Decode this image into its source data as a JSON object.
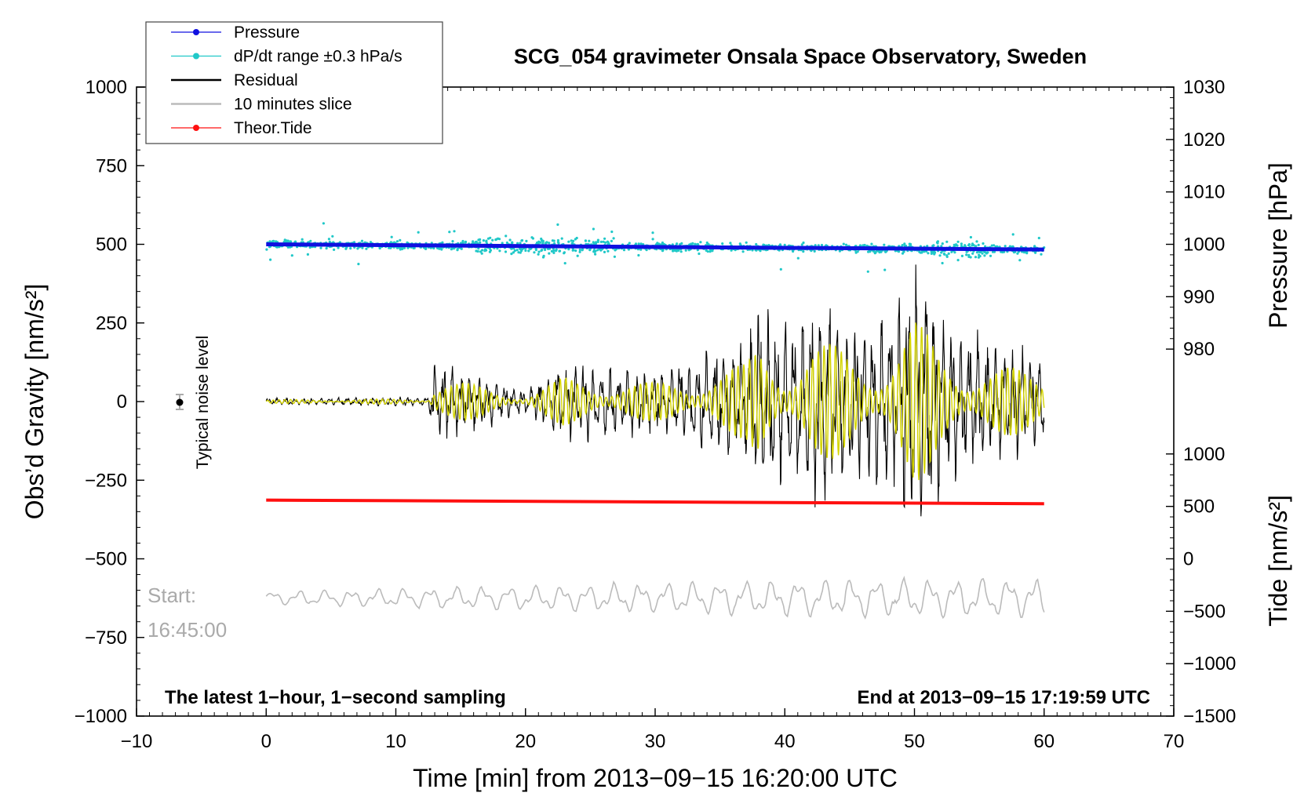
{
  "chart_data": {
    "type": "line",
    "title": "SCG_054 gravimeter Onsala Space Observatory, Sweden",
    "xlabel": "Time [min] from 2013−09−15 16:20:00 UTC",
    "ylabel": "Obs’d Gravity [nm/s²]",
    "ylabel_right_top": "Pressure [hPa]",
    "ylabel_right_bottom": "Tide [nm/s²]",
    "xlim": [
      -10,
      70
    ],
    "ylim": [
      -1000,
      1000
    ],
    "pressure_axis_range": [
      980,
      1030
    ],
    "tide_axis_range": [
      -1500,
      1000
    ],
    "x_ticks": [
      "−10",
      "0",
      "10",
      "20",
      "30",
      "40",
      "50",
      "60",
      "70"
    ],
    "y_ticks": [
      "1000",
      "750",
      "500",
      "250",
      "0",
      "−250",
      "−500",
      "−750",
      "−1000"
    ],
    "pressure_ticks": [
      "1030",
      "1020",
      "1010",
      "1000",
      "990",
      "980"
    ],
    "tide_ticks": [
      "1000",
      "500",
      "0",
      "−500",
      "−1000",
      "−1500"
    ],
    "legend": [
      {
        "label": "Pressure",
        "color": "#1010e0",
        "marker": true
      },
      {
        "label": "dP/dt range ±0.3 hPa/s",
        "color": "#20c8c8",
        "marker": true
      },
      {
        "label": "Residual",
        "color": "#000000",
        "marker": false
      },
      {
        "label": "10 minutes slice",
        "color": "#bbbbbb",
        "marker": false
      },
      {
        "label": "Theor.Tide",
        "color": "#ff1010",
        "marker": true
      }
    ],
    "series": [
      {
        "name": "Pressure",
        "unit": "hPa",
        "x": [
          0,
          60
        ],
        "values": [
          1000,
          999.0
        ]
      },
      {
        "name": "Theor.Tide",
        "unit": "nm/s²",
        "x": [
          0,
          60
        ],
        "values": [
          560,
          525
        ]
      },
      {
        "name": "Residual",
        "unit": "nm/s²",
        "x": [
          0,
          60
        ],
        "envelope": [
          [
            0,
            10
          ],
          [
            12.5,
            15
          ],
          [
            13,
            130
          ],
          [
            20,
            40
          ],
          [
            23,
            130
          ],
          [
            30,
            100
          ],
          [
            37,
            200
          ],
          [
            38,
            340
          ],
          [
            40,
            250
          ],
          [
            42,
            330
          ],
          [
            44,
            300
          ],
          [
            46,
            250
          ],
          [
            48,
            300
          ],
          [
            50,
            450
          ],
          [
            52,
            280
          ],
          [
            56,
            200
          ],
          [
            60,
            150
          ]
        ]
      },
      {
        "name": "10 minutes slice",
        "x": [
          0,
          60
        ],
        "baseline": -625,
        "amplitude": 60
      }
    ],
    "noise_marker": {
      "x": -7,
      "y": 0,
      "label": "Typical noise level"
    },
    "annotations": {
      "start_label": "Start:",
      "start_time": "16:45:00",
      "bottom_left": "The latest 1−hour, 1−second sampling",
      "bottom_right": "End at 2013−09−15 17:19:59 UTC"
    },
    "colors": {
      "pressure": "#1010e0",
      "dpdt": "#20c8c8",
      "residual": "#000000",
      "filtered": "#d4d400",
      "slice": "#bbbbbb",
      "tide": "#ff1010"
    }
  }
}
